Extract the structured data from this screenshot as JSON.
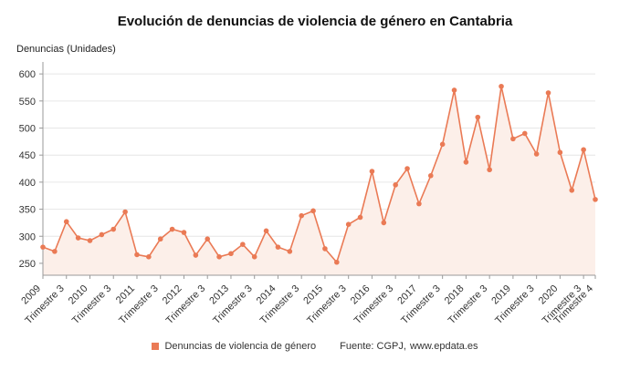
{
  "chart_data": {
    "type": "line",
    "title": "Evolución de denuncias de violencia de género en Cantabria",
    "ylabel": "Denuncias (Unidades)",
    "legend": "Denuncias de violencia de género",
    "source_prefix": "Fuente: CGPJ,",
    "source_link": "www.epdata.es",
    "ylim": [
      228,
      612
    ],
    "yticks": [
      250,
      300,
      350,
      400,
      450,
      500,
      550,
      600
    ],
    "categories": [
      "2009 T1",
      "2009 T2",
      "2009 T3",
      "2009 T4",
      "2010 T1",
      "2010 T2",
      "2010 T3",
      "2010 T4",
      "2011 T1",
      "2011 T2",
      "2011 T3",
      "2011 T4",
      "2012 T1",
      "2012 T2",
      "2012 T3",
      "2012 T4",
      "2013 T1",
      "2013 T2",
      "2013 T3",
      "2013 T4",
      "2014 T1",
      "2014 T2",
      "2014 T3",
      "2014 T4",
      "2015 T1",
      "2015 T2",
      "2015 T3",
      "2015 T4",
      "2016 T1",
      "2016 T2",
      "2016 T3",
      "2016 T4",
      "2017 T1",
      "2017 T2",
      "2017 T3",
      "2017 T4",
      "2018 T1",
      "2018 T2",
      "2018 T3",
      "2018 T4",
      "2019 T1",
      "2019 T2",
      "2019 T3",
      "2019 T4",
      "2020 T1",
      "2020 T2",
      "2020 T3",
      "2020 T4"
    ],
    "values": [
      280,
      272,
      327,
      297,
      292,
      303,
      313,
      345,
      266,
      262,
      295,
      313,
      307,
      265,
      295,
      262,
      268,
      285,
      262,
      310,
      280,
      272,
      338,
      347,
      277,
      252,
      322,
      335,
      420,
      325,
      395,
      425,
      360,
      412,
      470,
      570,
      437,
      520,
      423,
      577,
      480,
      490,
      452,
      565,
      455,
      385,
      460,
      368
    ],
    "x_ticks": [
      {
        "i": 0,
        "label": "2009"
      },
      {
        "i": 2,
        "label": "Trimestre 3"
      },
      {
        "i": 4,
        "label": "2010"
      },
      {
        "i": 6,
        "label": "Trimestre 3"
      },
      {
        "i": 8,
        "label": "2011"
      },
      {
        "i": 10,
        "label": "Trimestre 3"
      },
      {
        "i": 12,
        "label": "2012"
      },
      {
        "i": 14,
        "label": "Trimestre 3"
      },
      {
        "i": 16,
        "label": "2013"
      },
      {
        "i": 18,
        "label": "Trimestre 3"
      },
      {
        "i": 20,
        "label": "2014"
      },
      {
        "i": 22,
        "label": "Trimestre 3"
      },
      {
        "i": 24,
        "label": "2015"
      },
      {
        "i": 26,
        "label": "Trimestre 3"
      },
      {
        "i": 28,
        "label": "2016"
      },
      {
        "i": 30,
        "label": "Trimestre 3"
      },
      {
        "i": 32,
        "label": "2017"
      },
      {
        "i": 34,
        "label": "Trimestre 3"
      },
      {
        "i": 36,
        "label": "2018"
      },
      {
        "i": 38,
        "label": "Trimestre 3"
      },
      {
        "i": 40,
        "label": "2019"
      },
      {
        "i": 42,
        "label": "Trimestre 3"
      },
      {
        "i": 44,
        "label": "2020"
      },
      {
        "i": 46,
        "label": "Trimestre 3"
      },
      {
        "i": 47,
        "label": "Trimestre 4"
      }
    ],
    "colors": {
      "line": "#ea7a55",
      "area": "#fcefe9",
      "grid": "#e6e6e6",
      "axis": "#9a9a9a",
      "text": "#333333"
    },
    "legend_position": "bottom",
    "grid": true
  }
}
